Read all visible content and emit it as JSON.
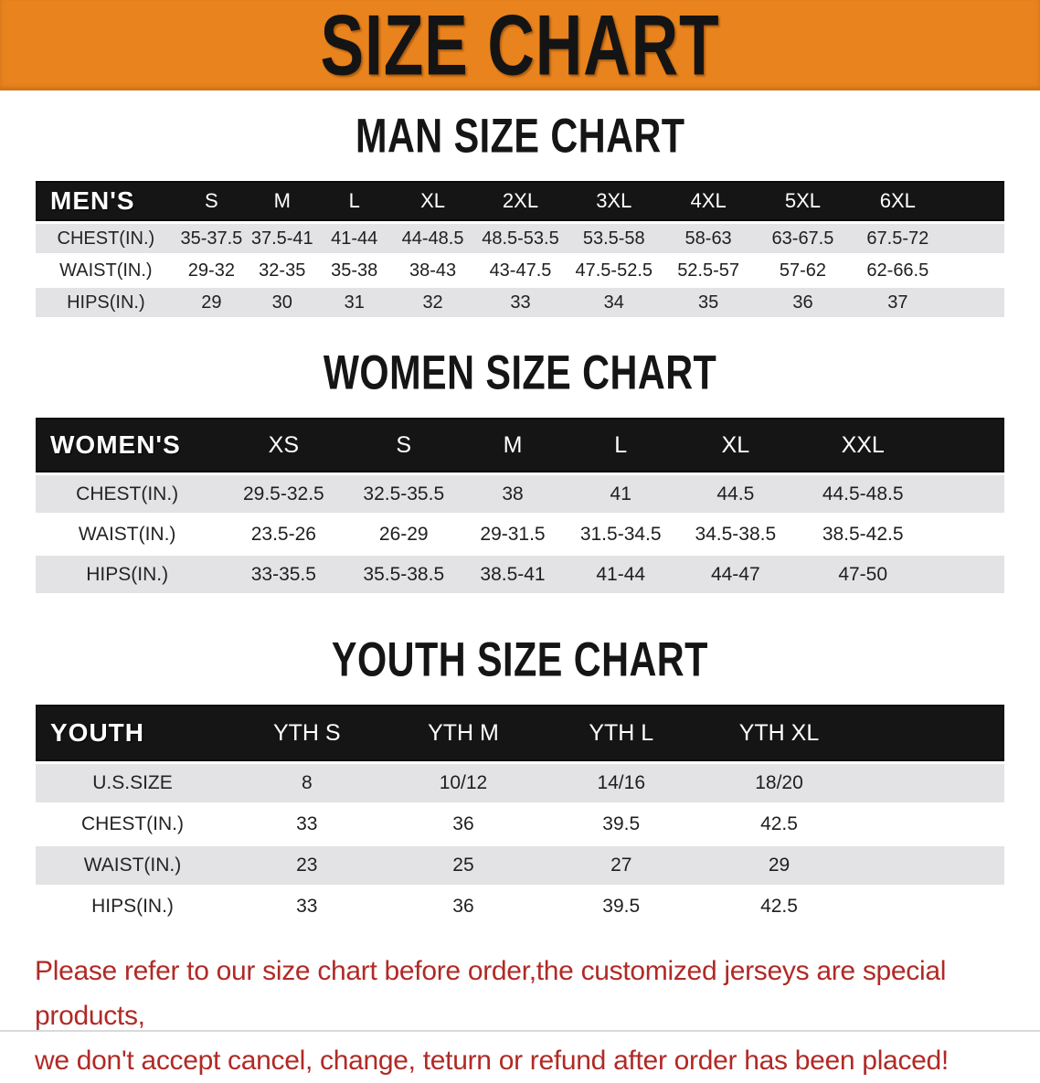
{
  "banner": {
    "title": "SIZE CHART"
  },
  "colors": {
    "banner_orange": "#e8831d",
    "header_black": "#151515",
    "stripe_gray": "#e3e3e5",
    "disclaimer_red": "#b02a26"
  },
  "sections": [
    {
      "heading": "MAN SIZE CHART",
      "table": {
        "header_label": "MEN'S",
        "columns": [
          "S",
          "M",
          "L",
          "XL",
          "2XL",
          "3XL",
          "4XL",
          "5XL",
          "6XL"
        ],
        "rows": [
          {
            "label": "CHEST(IN.)",
            "values": [
              "35-37.5",
              "37.5-41",
              "41-44",
              "44-48.5",
              "48.5-53.5",
              "53.5-58",
              "58-63",
              "63-67.5",
              "67.5-72"
            ]
          },
          {
            "label": "WAIST(IN.)",
            "values": [
              "29-32",
              "32-35",
              "35-38",
              "38-43",
              "43-47.5",
              "47.5-52.5",
              "52.5-57",
              "57-62",
              "62-66.5"
            ]
          },
          {
            "label": "HIPS(IN.)",
            "values": [
              "29",
              "30",
              "31",
              "32",
              "33",
              "34",
              "35",
              "36",
              "37"
            ]
          }
        ]
      }
    },
    {
      "heading": "WOMEN SIZE CHART",
      "table": {
        "header_label": "WOMEN'S",
        "columns": [
          "XS",
          "S",
          "M",
          "L",
          "XL",
          "XXL"
        ],
        "rows": [
          {
            "label": "CHEST(IN.)",
            "values": [
              "29.5-32.5",
              "32.5-35.5",
              "38",
              "41",
              "44.5",
              "44.5-48.5"
            ]
          },
          {
            "label": "WAIST(IN.)",
            "values": [
              "23.5-26",
              "26-29",
              "29-31.5",
              "31.5-34.5",
              "34.5-38.5",
              "38.5-42.5"
            ]
          },
          {
            "label": "HIPS(IN.)",
            "values": [
              "33-35.5",
              "35.5-38.5",
              "38.5-41",
              "41-44",
              "44-47",
              "47-50"
            ]
          }
        ]
      }
    },
    {
      "heading": "YOUTH SIZE CHART",
      "table": {
        "header_label": "YOUTH",
        "columns": [
          "YTH S",
          "YTH M",
          "YTH L",
          "YTH XL"
        ],
        "rows": [
          {
            "label": "U.S.SIZE",
            "values": [
              "8",
              "10/12",
              "14/16",
              "18/20"
            ]
          },
          {
            "label": "CHEST(IN.)",
            "values": [
              "33",
              "36",
              "39.5",
              "42.5"
            ]
          },
          {
            "label": "WAIST(IN.)",
            "values": [
              "23",
              "25",
              "27",
              "29"
            ]
          },
          {
            "label": "HIPS(IN.)",
            "values": [
              "33",
              "36",
              "39.5",
              "42.5"
            ]
          }
        ]
      }
    }
  ],
  "disclaimer": {
    "line1": "Please refer to our size chart before order,the customized jerseys are special products,",
    "line2": "we don't accept cancel, change, teturn or refund after order has been placed!"
  }
}
